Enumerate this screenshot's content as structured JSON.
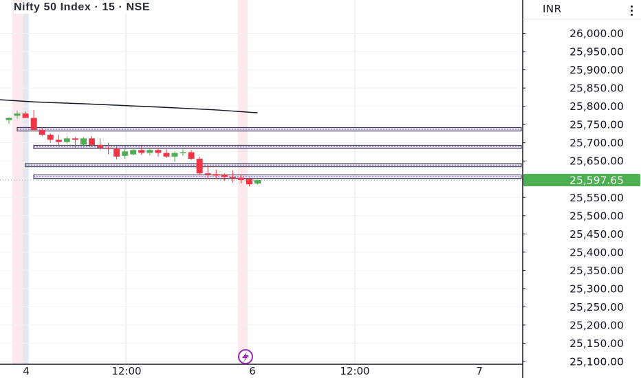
{
  "header": {
    "title": "Nifty 50 Index · 15 · NSE",
    "currency": "INR",
    "more_icon": "more-vertical-icon"
  },
  "colors": {
    "up": "#4caf50",
    "down": "#f23645",
    "zone_border": "#2a2e39",
    "zone_fill": "#d1c4e9",
    "zone_midline": "#7e57c2",
    "moving_average": "#131722",
    "grid": "#e0e3eb",
    "session_break": "#fbe3e6",
    "price_tag": "#4caf50",
    "flash_icon": "#9c27b0"
  },
  "chart_data": {
    "type": "candlestick",
    "title": "Nifty 50 Index · 15 · NSE",
    "ylim": [
      25100,
      26050
    ],
    "y_ticks": [
      26000,
      25950,
      25900,
      25850,
      25800,
      25750,
      25700,
      25650,
      25600,
      25550,
      25500,
      25450,
      25400,
      25350,
      25300,
      25250,
      25200,
      25150,
      25100
    ],
    "y_tick_labels": [
      "26,000.00",
      "25,950.00",
      "25,900.00",
      "25,850.00",
      "25,800.00",
      "25,750.00",
      "25,700.00",
      "25,650.00",
      "25,600.00",
      "25,550.00",
      "25,500.00",
      "25,450.00",
      "25,400.00",
      "25,350.00",
      "25,300.00",
      "25,250.00",
      "25,200.00",
      "25,150.00",
      "25,100.00"
    ],
    "x_tick_labels": [
      "4",
      "12:00",
      "6",
      "12:00",
      "7"
    ],
    "grid": true,
    "current_price": 25597.65,
    "current_price_label": "25,597.65",
    "candles": [
      {
        "o": 25762,
        "h": 25770,
        "l": 25752,
        "c": 25768
      },
      {
        "o": 25774,
        "h": 25788,
        "l": 25766,
        "c": 25780
      },
      {
        "o": 25780,
        "h": 25786,
        "l": 25770,
        "c": 25768
      },
      {
        "o": 25768,
        "h": 25790,
        "l": 25740,
        "c": 25735
      },
      {
        "o": 25735,
        "h": 25742,
        "l": 25718,
        "c": 25722
      },
      {
        "o": 25722,
        "h": 25726,
        "l": 25700,
        "c": 25708
      },
      {
        "o": 25708,
        "h": 25722,
        "l": 25692,
        "c": 25702
      },
      {
        "o": 25702,
        "h": 25718,
        "l": 25698,
        "c": 25712
      },
      {
        "o": 25712,
        "h": 25716,
        "l": 25686,
        "c": 25708
      },
      {
        "o": 25695,
        "h": 25716,
        "l": 25690,
        "c": 25712
      },
      {
        "o": 25712,
        "h": 25718,
        "l": 25690,
        "c": 25694
      },
      {
        "o": 25694,
        "h": 25712,
        "l": 25680,
        "c": 25686
      },
      {
        "o": 25686,
        "h": 25700,
        "l": 25668,
        "c": 25684
      },
      {
        "o": 25684,
        "h": 25690,
        "l": 25654,
        "c": 25662
      },
      {
        "o": 25664,
        "h": 25692,
        "l": 25656,
        "c": 25676
      },
      {
        "o": 25668,
        "h": 25684,
        "l": 25666,
        "c": 25680
      },
      {
        "o": 25680,
        "h": 25692,
        "l": 25666,
        "c": 25672
      },
      {
        "o": 25672,
        "h": 25684,
        "l": 25666,
        "c": 25680
      },
      {
        "o": 25680,
        "h": 25684,
        "l": 25662,
        "c": 25672
      },
      {
        "o": 25672,
        "h": 25682,
        "l": 25658,
        "c": 25662
      },
      {
        "o": 25662,
        "h": 25676,
        "l": 25648,
        "c": 25672
      },
      {
        "o": 25672,
        "h": 25682,
        "l": 25664,
        "c": 25674
      },
      {
        "o": 25674,
        "h": 25680,
        "l": 25652,
        "c": 25656
      },
      {
        "o": 25656,
        "h": 25662,
        "l": 25612,
        "c": 25616
      },
      {
        "o": 25616,
        "h": 25636,
        "l": 25602,
        "c": 25614
      },
      {
        "o": 25614,
        "h": 25626,
        "l": 25600,
        "c": 25610
      },
      {
        "o": 25612,
        "h": 25616,
        "l": 25595,
        "c": 25606
      },
      {
        "o": 25606,
        "h": 25624,
        "l": 25590,
        "c": 25604
      },
      {
        "o": 25604,
        "h": 25612,
        "l": 25588,
        "c": 25598
      },
      {
        "o": 25600,
        "h": 25604,
        "l": 25580,
        "c": 25586
      },
      {
        "o": 25588,
        "h": 25598,
        "l": 25586,
        "c": 25597.65
      }
    ],
    "zones": [
      {
        "top": 25742,
        "bottom": 25732
      },
      {
        "top": 25693,
        "bottom": 25684
      },
      {
        "top": 25643,
        "bottom": 25634
      },
      {
        "top": 25612,
        "bottom": 25602
      }
    ],
    "moving_average": [
      {
        "i": -3,
        "v": 25818
      },
      {
        "i": 3,
        "v": 25812
      },
      {
        "i": 10,
        "v": 25806
      },
      {
        "i": 18,
        "v": 25798
      },
      {
        "i": 25,
        "v": 25790
      },
      {
        "i": 30,
        "v": 25782
      }
    ]
  }
}
